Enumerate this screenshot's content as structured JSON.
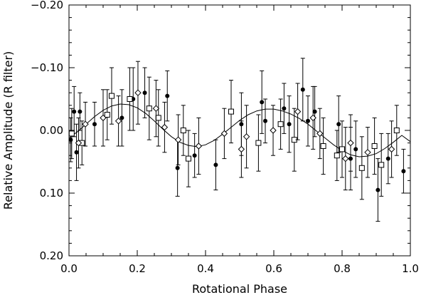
{
  "chart_data": {
    "type": "scatter",
    "xlabel": "Rotational Phase",
    "ylabel": "Relative Amplitude (R filter)",
    "xlim": [
      0.0,
      1.0
    ],
    "ylim": [
      0.2,
      -0.2
    ],
    "y_inverted": true,
    "x_ticks": [
      0.0,
      0.2,
      0.4,
      0.6,
      0.8,
      1.0
    ],
    "x_tick_labels": [
      "0.0",
      "0.2",
      "0.4",
      "0.6",
      "0.8",
      "1.0"
    ],
    "y_ticks": [
      -0.2,
      -0.1,
      0.0,
      0.1,
      0.2
    ],
    "y_tick_labels": [
      "−0.20",
      "−0.10",
      "0.00",
      "0.10",
      "0.20"
    ],
    "grid": false,
    "legend": "none",
    "marker_series": [
      {
        "marker": "circle",
        "x": [
          0.005,
          0.015,
          0.022,
          0.032,
          0.075,
          0.155,
          0.188,
          0.222,
          0.288,
          0.318,
          0.368,
          0.43,
          0.505,
          0.565,
          0.575,
          0.63,
          0.645,
          0.685,
          0.7,
          0.72,
          0.79,
          0.825,
          0.84,
          0.905,
          0.935,
          0.98
        ],
        "y": [
          0.015,
          -0.03,
          0.035,
          -0.03,
          -0.01,
          -0.02,
          -0.05,
          -0.06,
          -0.055,
          0.06,
          0.04,
          0.055,
          -0.01,
          -0.045,
          -0.015,
          -0.035,
          -0.01,
          -0.065,
          -0.015,
          -0.03,
          -0.01,
          0.045,
          0.03,
          0.095,
          0.045,
          0.065
        ],
        "err": [
          0.035,
          0.04,
          0.045,
          0.03,
          0.035,
          0.045,
          0.05,
          0.04,
          0.04,
          0.045,
          0.035,
          0.04,
          0.05,
          0.05,
          0.035,
          0.04,
          0.045,
          0.05,
          0.04,
          0.04,
          0.045,
          0.05,
          0.045,
          0.05,
          0.04,
          0.035
        ]
      },
      {
        "marker": "square",
        "x": [
          0.008,
          0.038,
          0.112,
          0.125,
          0.178,
          0.235,
          0.262,
          0.335,
          0.35,
          0.475,
          0.555,
          0.62,
          0.66,
          0.745,
          0.785,
          0.8,
          0.858,
          0.895,
          0.915,
          0.96
        ],
        "y": [
          0.005,
          0.02,
          -0.025,
          -0.055,
          -0.05,
          -0.035,
          -0.02,
          0.0,
          0.045,
          -0.03,
          0.02,
          -0.01,
          0.015,
          0.025,
          0.04,
          0.03,
          0.06,
          0.025,
          0.055,
          0.0
        ],
        "err": [
          0.04,
          0.035,
          0.04,
          0.045,
          0.05,
          0.05,
          0.045,
          0.04,
          0.045,
          0.05,
          0.045,
          0.04,
          0.05,
          0.045,
          0.04,
          0.045,
          0.05,
          0.045,
          0.05,
          0.04
        ]
      },
      {
        "marker": "diamond",
        "x": [
          0.028,
          0.048,
          0.1,
          0.145,
          0.202,
          0.255,
          0.28,
          0.32,
          0.38,
          0.455,
          0.505,
          0.52,
          0.598,
          0.67,
          0.715,
          0.735,
          0.81,
          0.825,
          0.875,
          0.945
        ],
        "y": [
          0.02,
          -0.01,
          -0.02,
          -0.015,
          -0.06,
          -0.035,
          -0.005,
          0.015,
          0.025,
          0.005,
          0.03,
          0.01,
          0.0,
          -0.03,
          -0.02,
          0.005,
          0.045,
          0.02,
          0.035,
          0.03
        ],
        "err": [
          0.04,
          0.035,
          0.045,
          0.04,
          0.05,
          0.045,
          0.04,
          0.04,
          0.045,
          0.04,
          0.045,
          0.05,
          0.04,
          0.045,
          0.05,
          0.04,
          0.05,
          0.045,
          0.04,
          0.045
        ]
      }
    ],
    "fit_curve": {
      "description_values": "two-peaked sinusoidal fit",
      "x": [
        0.0,
        0.025,
        0.05,
        0.075,
        0.1,
        0.125,
        0.15,
        0.175,
        0.2,
        0.225,
        0.25,
        0.275,
        0.3,
        0.325,
        0.35,
        0.375,
        0.4,
        0.425,
        0.45,
        0.475,
        0.5,
        0.525,
        0.55,
        0.575,
        0.6,
        0.625,
        0.65,
        0.675,
        0.7,
        0.725,
        0.75,
        0.775,
        0.8,
        0.825,
        0.85,
        0.875,
        0.9,
        0.925,
        0.95,
        0.975,
        1.0
      ],
      "y": [
        0.012,
        0.002,
        -0.01,
        -0.022,
        -0.032,
        -0.039,
        -0.042,
        -0.041,
        -0.036,
        -0.027,
        -0.015,
        -0.002,
        0.01,
        0.019,
        0.024,
        0.026,
        0.023,
        0.016,
        0.006,
        -0.005,
        -0.016,
        -0.025,
        -0.031,
        -0.034,
        -0.034,
        -0.031,
        -0.026,
        -0.019,
        -0.01,
        0.001,
        0.012,
        0.023,
        0.032,
        0.039,
        0.042,
        0.041,
        0.037,
        0.029,
        0.019,
        0.008,
        0.018
      ]
    }
  }
}
